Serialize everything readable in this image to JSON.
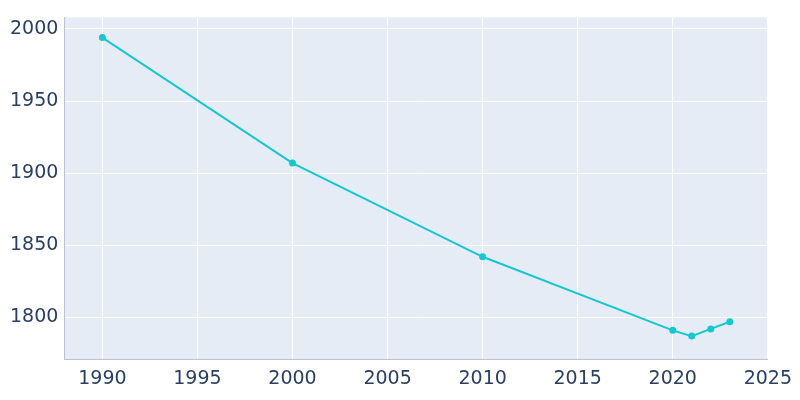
{
  "chart_data": {
    "type": "line",
    "x": [
      1990,
      2000,
      2010,
      2020,
      2021,
      2022,
      2023
    ],
    "values": [
      1994,
      1907,
      1842,
      1791,
      1787,
      1792,
      1797
    ],
    "color": "#17c6cf",
    "marker": "circle",
    "xlim": [
      1988,
      2025
    ],
    "xticks": [
      1990,
      1995,
      2000,
      2005,
      2010,
      2015,
      2020,
      2025
    ],
    "ylim": [
      1771,
      2008
    ],
    "yticks": [
      1800,
      1850,
      1900,
      1950,
      2000
    ],
    "grid": true
  }
}
